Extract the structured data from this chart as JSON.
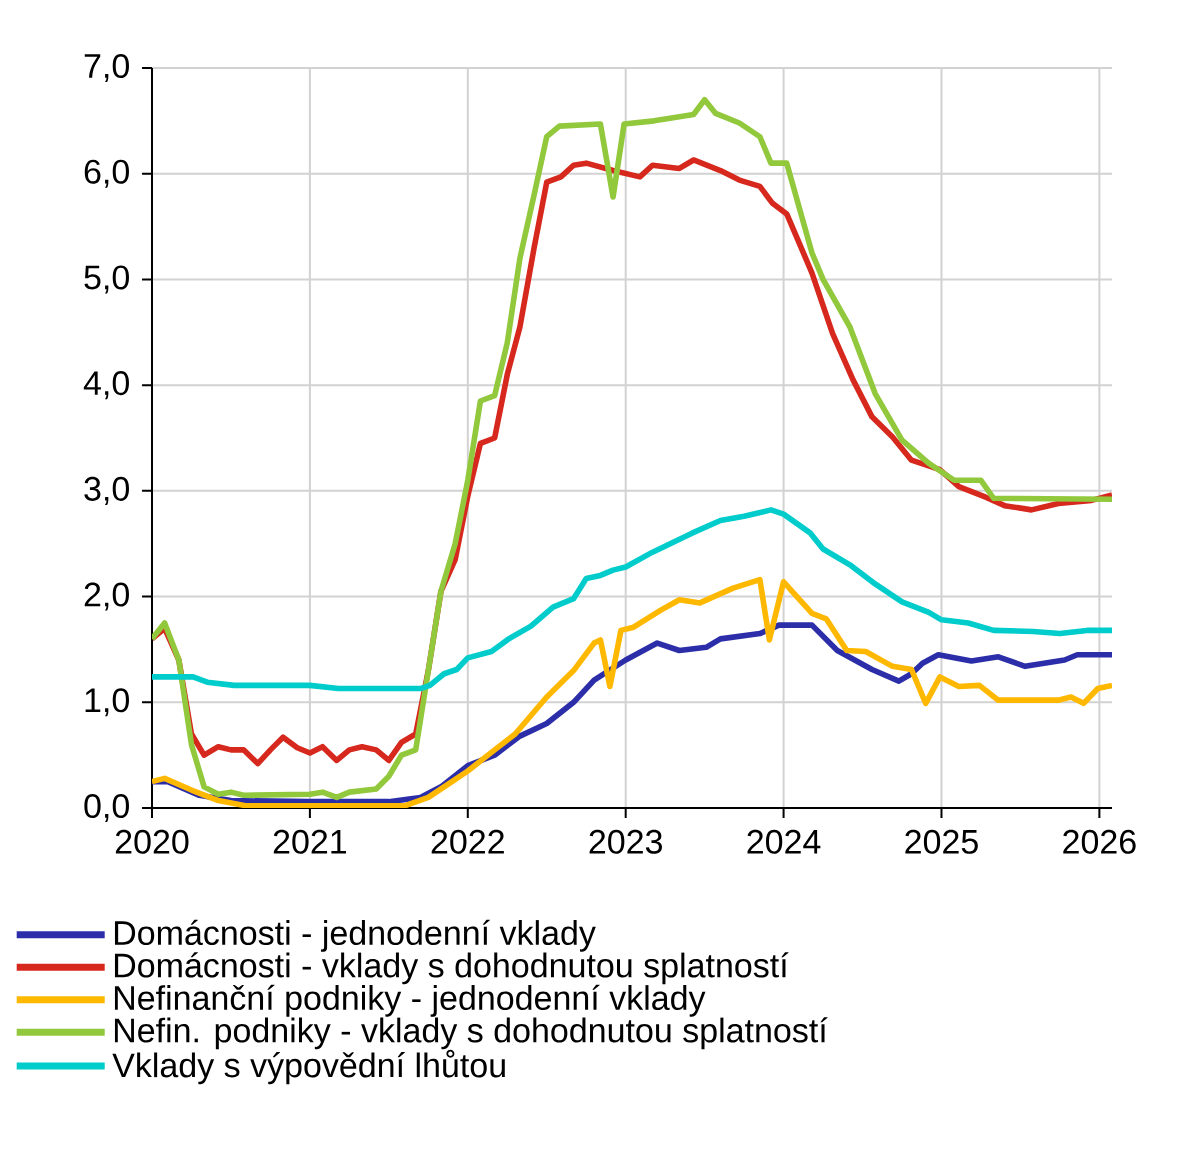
{
  "chart_data": {
    "type": "line",
    "xlim": [
      2020,
      2026.08
    ],
    "xticks": [
      2020,
      2021,
      2022,
      2023,
      2024,
      2025,
      2026
    ],
    "ylim": [
      0,
      7
    ],
    "yticks": [
      {
        "value": 0,
        "label": "0,0"
      },
      {
        "value": 1,
        "label": "1,0"
      },
      {
        "value": 2,
        "label": "2,0"
      },
      {
        "value": 3,
        "label": "3,0"
      },
      {
        "value": 4,
        "label": "4,0"
      },
      {
        "value": 5,
        "label": "5,0"
      },
      {
        "value": 6,
        "label": "6,0"
      },
      {
        "value": 7,
        "label": "7,0"
      }
    ],
    "grid": true,
    "legend": "bottom",
    "line_style": "solid",
    "series": [
      {
        "name": "Domácnosti - jednodenní vklady",
        "color": "#2b2ea8",
        "x": [
          2020,
          2020.1,
          2020.3,
          2020.5,
          2021,
          2021.5,
          2021.7,
          2021.83,
          2022,
          2022.17,
          2022.33,
          2022.5,
          2022.67,
          2022.8,
          2023.0,
          2023.2,
          2023.34,
          2023.51,
          2023.6,
          2023.85,
          2023.97,
          2024.18,
          2024.34,
          2024.56,
          2024.73,
          2024.81,
          2024.88,
          2024.98,
          2025.19,
          2025.36,
          2025.53,
          2025.78,
          2025.86,
          2026.08
        ],
        "values": [
          0.25,
          0.25,
          0.12,
          0.07,
          0.06,
          0.06,
          0.1,
          0.2,
          0.4,
          0.5,
          0.68,
          0.8,
          1.0,
          1.21,
          1.4,
          1.56,
          1.49,
          1.52,
          1.6,
          1.65,
          1.73,
          1.73,
          1.49,
          1.31,
          1.2,
          1.27,
          1.37,
          1.45,
          1.39,
          1.43,
          1.34,
          1.4,
          1.45,
          1.45
        ]
      },
      {
        "name": "Domácnosti - vklady s dohodnutou splatností",
        "color": "#d7281e",
        "x": [
          2020.0,
          2020.08,
          2020.17,
          2020.25,
          2020.33,
          2020.42,
          2020.5,
          2020.58,
          2020.67,
          2020.75,
          2020.83,
          2020.92,
          2021.0,
          2021.08,
          2021.17,
          2021.25,
          2021.33,
          2021.42,
          2021.5,
          2021.58,
          2021.67,
          2021.75,
          2021.83,
          2021.92,
          2022.0,
          2022.08,
          2022.17,
          2022.25,
          2022.33,
          2022.42,
          2022.5,
          2022.59,
          2022.67,
          2022.75,
          2022.92,
          2023.09,
          2023.17,
          2023.34,
          2023.43,
          2023.6,
          2023.72,
          2023.85,
          2023.93,
          2024.02,
          2024.18,
          2024.31,
          2024.44,
          2024.56,
          2024.69,
          2024.81,
          2024.99,
          2025.11,
          2025.28,
          2025.4,
          2025.57,
          2025.74,
          2025.95,
          2026.08
        ],
        "values": [
          1.6,
          1.7,
          1.4,
          0.7,
          0.5,
          0.58,
          0.55,
          0.55,
          0.42,
          0.55,
          0.67,
          0.57,
          0.52,
          0.58,
          0.45,
          0.55,
          0.58,
          0.55,
          0.45,
          0.62,
          0.7,
          1.3,
          2.05,
          2.35,
          2.95,
          3.45,
          3.5,
          4.1,
          4.55,
          5.3,
          5.92,
          5.97,
          6.08,
          6.1,
          6.03,
          5.97,
          6.08,
          6.05,
          6.13,
          6.03,
          5.94,
          5.88,
          5.72,
          5.62,
          5.06,
          4.49,
          4.05,
          3.7,
          3.51,
          3.29,
          3.2,
          3.04,
          2.94,
          2.86,
          2.82,
          2.88,
          2.91,
          2.96
        ]
      },
      {
        "name": "Nefinanční podniky - jednodenní vklady",
        "color": "#ffb800",
        "x": [
          2020,
          2020.08,
          2020.25,
          2020.42,
          2020.6,
          2021,
          2021.6,
          2021.75,
          2021.9,
          2022.0,
          2022.17,
          2022.3,
          2022.5,
          2022.67,
          2022.8,
          2022.84,
          2022.9,
          2022.97,
          2023.05,
          2023.22,
          2023.34,
          2023.47,
          2023.68,
          2023.85,
          2023.91,
          2024.0,
          2024.18,
          2024.27,
          2024.4,
          2024.52,
          2024.69,
          2024.81,
          2024.9,
          2024.99,
          2025.11,
          2025.24,
          2025.36,
          2025.74,
          2025.82,
          2025.9,
          2025.99,
          2026.08
        ],
        "values": [
          0.25,
          0.28,
          0.17,
          0.07,
          0.02,
          0.02,
          0.02,
          0.1,
          0.25,
          0.35,
          0.55,
          0.7,
          1.05,
          1.3,
          1.56,
          1.59,
          1.15,
          1.68,
          1.71,
          1.87,
          1.97,
          1.94,
          2.08,
          2.16,
          1.59,
          2.14,
          1.84,
          1.79,
          1.49,
          1.48,
          1.34,
          1.31,
          0.99,
          1.24,
          1.15,
          1.16,
          1.02,
          1.02,
          1.05,
          0.99,
          1.13,
          1.16
        ]
      },
      {
        "name": "Nefin. podniky - vklady s dohodnutou splatností",
        "color": "#92c83c",
        "x": [
          2020.0,
          2020.08,
          2020.17,
          2020.25,
          2020.33,
          2020.42,
          2020.5,
          2020.58,
          2021.0,
          2021.08,
          2021.17,
          2021.25,
          2021.42,
          2021.5,
          2021.58,
          2021.67,
          2021.75,
          2021.83,
          2021.92,
          2022.0,
          2022.08,
          2022.17,
          2022.25,
          2022.33,
          2022.42,
          2022.5,
          2022.58,
          2022.84,
          2022.92,
          2022.99,
          2023.18,
          2023.43,
          2023.5,
          2023.57,
          2023.72,
          2023.85,
          2023.92,
          2024.02,
          2024.18,
          2024.25,
          2024.42,
          2024.58,
          2024.75,
          2024.92,
          2025.08,
          2025.25,
          2025.33,
          2026.08
        ],
        "values": [
          1.6,
          1.75,
          1.4,
          0.6,
          0.2,
          0.13,
          0.15,
          0.12,
          0.13,
          0.15,
          0.1,
          0.15,
          0.18,
          0.3,
          0.5,
          0.55,
          1.3,
          2.05,
          2.5,
          3.1,
          3.85,
          3.9,
          4.4,
          5.2,
          5.8,
          6.35,
          6.45,
          6.47,
          5.78,
          6.47,
          6.5,
          6.56,
          6.7,
          6.57,
          6.48,
          6.35,
          6.1,
          6.1,
          5.25,
          5.0,
          4.55,
          3.92,
          3.48,
          3.26,
          3.1,
          3.1,
          2.93,
          2.92
        ]
      },
      {
        "name": "Vklady s výpovědní lhůtou",
        "color": "#00cccc",
        "x": [
          2020,
          2020.26,
          2020.35,
          2020.52,
          2021.0,
          2021.18,
          2021.7,
          2021.76,
          2021.85,
          2021.93,
          2022.0,
          2022.15,
          2022.26,
          2022.4,
          2022.54,
          2022.67,
          2022.75,
          2022.84,
          2022.92,
          2023.0,
          2023.17,
          2023.42,
          2023.6,
          2023.75,
          2023.92,
          2024.0,
          2024.17,
          2024.25,
          2024.42,
          2024.58,
          2024.75,
          2024.92,
          2025.0,
          2025.17,
          2025.33,
          2025.58,
          2025.75,
          2025.92,
          2026.08
        ],
        "values": [
          1.24,
          1.24,
          1.19,
          1.16,
          1.16,
          1.13,
          1.13,
          1.16,
          1.27,
          1.31,
          1.42,
          1.48,
          1.6,
          1.72,
          1.9,
          1.98,
          2.17,
          2.2,
          2.25,
          2.28,
          2.42,
          2.6,
          2.72,
          2.76,
          2.82,
          2.78,
          2.6,
          2.45,
          2.3,
          2.12,
          1.95,
          1.85,
          1.78,
          1.75,
          1.68,
          1.67,
          1.65,
          1.68,
          1.68
        ]
      }
    ]
  }
}
